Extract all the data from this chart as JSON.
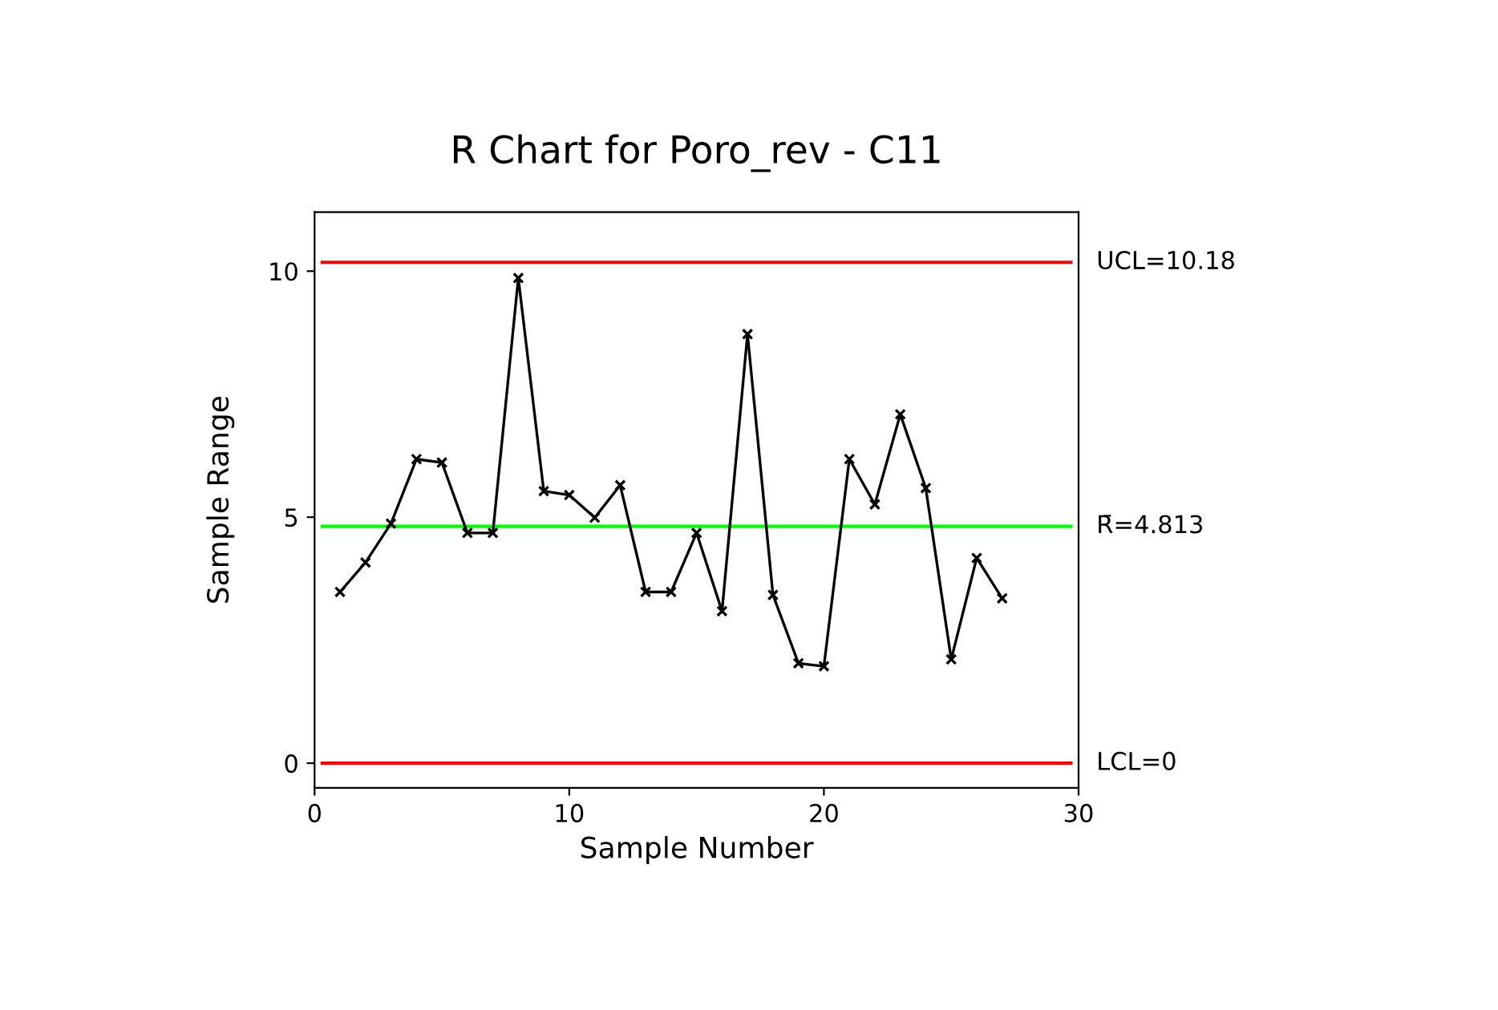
{
  "chart_data": {
    "type": "line",
    "title": "R Chart for Poro_rev - C11",
    "xlabel": "Sample Number",
    "ylabel": "Sample Range",
    "x": [
      1,
      2,
      3,
      4,
      5,
      6,
      7,
      8,
      9,
      10,
      11,
      12,
      13,
      14,
      15,
      16,
      17,
      18,
      19,
      20,
      21,
      22,
      23,
      24,
      25,
      26,
      27
    ],
    "series": [
      {
        "color": "#000000",
        "values": [
          3.48,
          4.08,
          4.87,
          6.18,
          6.11,
          4.68,
          4.68,
          9.86,
          5.53,
          5.45,
          4.99,
          5.65,
          3.48,
          3.48,
          4.68,
          3.09,
          8.72,
          3.42,
          2.03,
          1.97,
          6.18,
          5.26,
          7.09,
          5.59,
          2.11,
          4.17,
          3.35
        ]
      }
    ],
    "marker": "cross",
    "line_style": "solid",
    "xlim": [
      0,
      30
    ],
    "xticks": [
      0,
      10,
      20,
      30
    ],
    "ylim": [
      -0.5,
      11.2
    ],
    "yticks": [
      0,
      5,
      10
    ],
    "grid": false,
    "legend": false,
    "ref_lines": [
      {
        "axis": "y",
        "value": 10.18,
        "label": "UCL=10.18",
        "color": "#ff0000"
      },
      {
        "axis": "y",
        "value": 4.813,
        "label": "R̄=4.813",
        "color": "#00ff00"
      },
      {
        "axis": "y",
        "value": 0,
        "label": "LCL=0",
        "color": "#ff0000"
      }
    ]
  }
}
